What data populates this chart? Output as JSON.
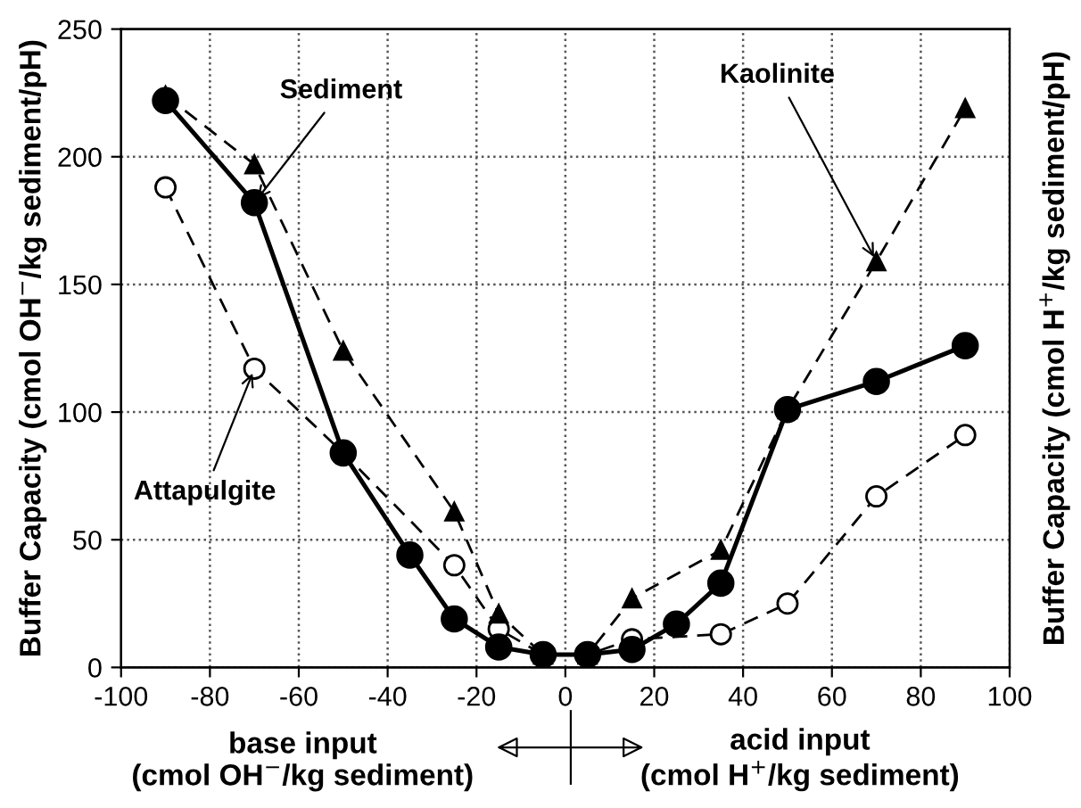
{
  "chart_data": {
    "type": "line",
    "xlabel": "base input\n(cmol OH$^{−}$/kg sediment)",
    "ylabel": "Buffer Capacity (cmol OH$^{−}$/kg sediment/pH)",
    "y2label": "Buffer Capacity (cmol H$^{+}$/kg sediment/pH)",
    "xlim": [
      -100,
      100
    ],
    "xticks": [
      -100,
      -80,
      -60,
      -40,
      -20,
      0,
      20,
      40,
      60,
      80,
      100
    ],
    "ylim": [
      0,
      250
    ],
    "yticks": [
      0,
      50,
      100,
      150,
      200,
      250
    ],
    "grid": true,
    "series": [
      {
        "name": "Sediment",
        "color": "#000000",
        "marker": "circle",
        "line_style": "solid",
        "x": [
          -90,
          -70,
          -50,
          -35,
          -25,
          -15,
          -5,
          5,
          15,
          25,
          35,
          50,
          70,
          90
        ],
        "values": [
          222,
          182,
          84,
          44,
          19,
          8,
          5,
          5,
          7,
          17,
          33,
          101,
          112,
          126
        ]
      },
      {
        "name": "Kaolinite",
        "color": "#000000",
        "marker": "triangle",
        "line_style": "dashed",
        "x": [
          -90,
          -70,
          -50,
          -25,
          -15,
          -5,
          5,
          15,
          35,
          50,
          70,
          90
        ],
        "values": [
          224,
          197,
          124,
          61,
          21,
          5,
          5,
          27,
          46,
          101,
          159,
          219
        ]
      },
      {
        "name": "Attapulgite",
        "color": "#000000",
        "marker": "circle_open",
        "line_style": "dashed",
        "x": [
          -90,
          -70,
          -50,
          -25,
          -15,
          -5,
          5,
          15,
          35,
          50,
          70,
          90
        ],
        "values": [
          188,
          117,
          84,
          40,
          15,
          5,
          5,
          11,
          13,
          25,
          67,
          91
        ]
      }
    ],
    "annotations": [
      "acid input\n(cmol H$^{+}$/kg sediment)"
    ]
  }
}
